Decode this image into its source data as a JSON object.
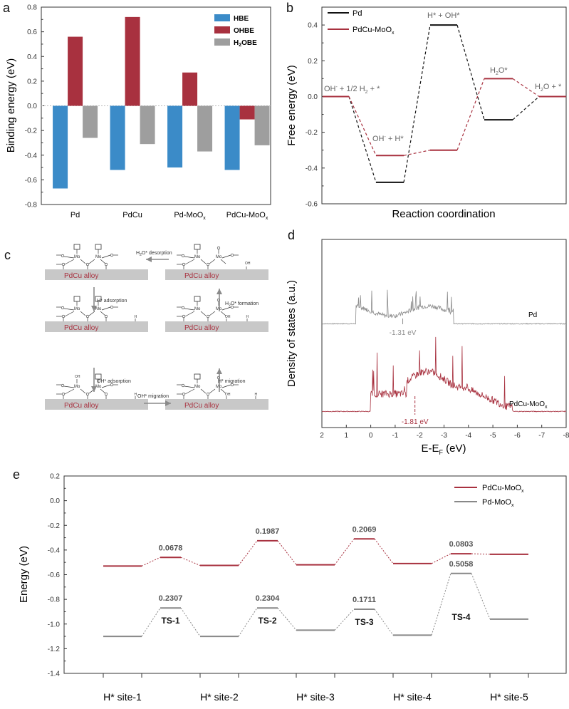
{
  "panel_letters": {
    "a": "a",
    "b": "b",
    "c": "c",
    "d": "d",
    "e": "e"
  },
  "colors": {
    "blue": "#3b8bc8",
    "red": "#a8313f",
    "gray": "#9e9e9e",
    "black": "#111111",
    "dgray": "#888888"
  },
  "chart_data": [
    {
      "id": "a",
      "type": "bar",
      "title": "",
      "xlabel": "",
      "ylabel": "Binding energy (eV)",
      "ylim": [
        -0.8,
        0.8
      ],
      "yticks": [
        "0.8",
        "0.6",
        "0.4",
        "0.2",
        "0.0",
        "-0.2",
        "-0.4",
        "-0.6",
        "-0.8"
      ],
      "categories": [
        "Pd",
        "PdCu",
        "Pd-MoO",
        "PdCu-MoO"
      ],
      "category_subscripts": [
        "",
        "",
        "x",
        "x"
      ],
      "legend_position": "top-right",
      "series": [
        {
          "name": "HBE",
          "values": [
            -0.67,
            -0.52,
            -0.5,
            -0.52
          ]
        },
        {
          "name": "OHBE",
          "values": [
            0.56,
            0.72,
            0.27,
            -0.11
          ]
        },
        {
          "name": "H2OBE",
          "label_main": "H",
          "label_sub": "2",
          "label_rest": "OBE",
          "values": [
            -0.26,
            -0.31,
            -0.37,
            -0.32
          ]
        }
      ],
      "zero_line": "dotted"
    },
    {
      "id": "b",
      "type": "line",
      "xlabel": "Reaction coordination",
      "ylabel": "Free energy (eV)",
      "ylim": [
        -0.6,
        0.5
      ],
      "yticks": [
        "0.4",
        "0.2",
        "0.0",
        "-0.2",
        "-0.4",
        "-0.6"
      ],
      "legend_position": "top-left",
      "states": [
        "OH- + 1/2 H2 + *",
        "OH- + H*",
        "H* + OH*",
        "H2O*",
        "H2O + *"
      ],
      "series": [
        {
          "name": "Pd",
          "values": [
            0.0,
            -0.48,
            0.4,
            -0.13,
            0.0
          ]
        },
        {
          "name": "PdCu-MoOx",
          "label_main": "PdCu-MoO",
          "label_sub": "x",
          "values": [
            0.0,
            -0.33,
            -0.3,
            0.1,
            0.0
          ]
        }
      ],
      "annotations": [
        {
          "text": "OH",
          "sup": "-",
          "rest": " + 1/2 H",
          "sub": "2",
          "rest2": " + *"
        },
        {
          "text": "OH",
          "sup": "-",
          "rest": " + H*",
          "sub": "",
          "rest2": ""
        },
        {
          "text": "H* + OH*",
          "sup": "",
          "rest": "",
          "sub": "",
          "rest2": ""
        },
        {
          "text": "H",
          "sup": "",
          "rest": "",
          "sub": "2",
          "rest2": "O*"
        },
        {
          "text": "H",
          "sup": "",
          "rest": "",
          "sub": "2",
          "rest2": "O + *"
        }
      ]
    },
    {
      "id": "d",
      "type": "line",
      "xlabel": "E-E",
      "xlabel_sub": "F",
      "xlabel_rest": " (eV)",
      "ylabel": "Density of states (a.u.)",
      "xlim": [
        2,
        -8
      ],
      "xticks": [
        "2",
        "1",
        "0",
        "-1",
        "-2",
        "-3",
        "-4",
        "-5",
        "-6",
        "-7",
        "-8"
      ],
      "series": [
        {
          "name": "Pd",
          "d_band_center": -1.31,
          "d_band_label": "-1.31 eV",
          "band_range": [
            0.6,
            -3.4
          ]
        },
        {
          "name": "PdCu-MoOx",
          "label_main": "PdCu-MoO",
          "label_sub": "x",
          "d_band_center": -1.81,
          "d_band_label": "-1.81 eV",
          "band_range": [
            0.0,
            -5.8
          ]
        }
      ]
    },
    {
      "id": "e",
      "type": "line",
      "xlabel": "",
      "ylabel": "Energy (eV)",
      "ylim": [
        -1.4,
        0.2
      ],
      "yticks": [
        "0.2",
        "0.0",
        "-0.2",
        "-0.4",
        "-0.6",
        "-0.8",
        "-1.0",
        "-1.2",
        "-1.4"
      ],
      "categories": [
        "H* site-1",
        "H* site-2",
        "H* site-3",
        "H* site-4",
        "H* site-5"
      ],
      "ts_labels": [
        "TS-1",
        "TS-2",
        "TS-3",
        "TS-4"
      ],
      "legend_position": "top-right",
      "series": [
        {
          "name": "PdCu-MoOx",
          "label_main": "PdCu-MoO",
          "label_sub": "x",
          "sites": [
            -0.53,
            -0.525,
            -0.52,
            -0.51,
            -0.435
          ],
          "ts": [
            -0.46,
            -0.325,
            -0.31,
            -0.43
          ],
          "barriers": [
            "0.0678",
            "0.1987",
            "0.2069",
            "0.0803"
          ]
        },
        {
          "name": "Pd-MoOx",
          "label_main": "Pd-MoO",
          "label_sub": "x",
          "sites": [
            -1.1,
            -1.1,
            -1.05,
            -1.09,
            -0.96
          ],
          "ts": [
            -0.87,
            -0.87,
            -0.88,
            -0.59
          ],
          "barriers": [
            "0.2307",
            "0.2304",
            "0.1711",
            "0.5058"
          ]
        }
      ]
    }
  ],
  "diagram_c": {
    "substrate_label": "PdCu alloy",
    "steps": [
      {
        "label": "H2O* desorption",
        "main": "H",
        "sub": "2",
        "rest": "O* desorption"
      },
      {
        "label": "H* adsorption"
      },
      {
        "label": "OH* adsorption"
      },
      {
        "label": "OH* migration"
      },
      {
        "label": "H* migration"
      },
      {
        "label": "H2O* formation",
        "main": "H",
        "sub": "2",
        "rest": "O* formation"
      }
    ],
    "atoms": {
      "mo": "Mo",
      "o": "O",
      "h": "H",
      "oh": "OH",
      "oh2": "OH"
    }
  }
}
